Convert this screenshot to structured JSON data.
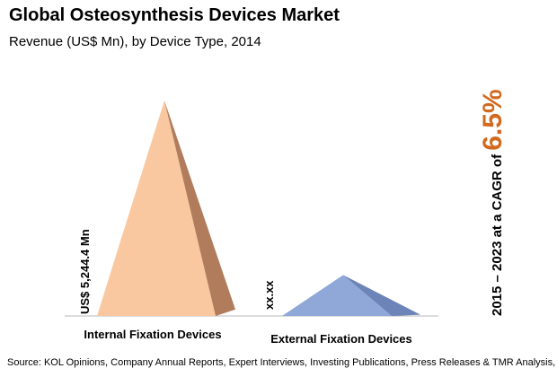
{
  "header": {
    "title": "Global Osteosynthesis Devices Market",
    "subtitle": "Revenue (US$ Mn), by Device Type, 2014"
  },
  "cagr": {
    "text": "2015 – 2023 at a CAGR of ",
    "value": "6.5%"
  },
  "source": "Source: KOL Opinions, Company Annual Reports, Expert Interviews, Investing Publications, Press Releases & TMR Analysis, 2016",
  "chart_data": {
    "type": "bar",
    "title": "Global Osteosynthesis Devices Market",
    "subtitle": "Revenue (US$ Mn), by Device Type, 2014",
    "categories": [
      "Internal Fixation Devices",
      "External Fixation Devices"
    ],
    "values": [
      5244.4,
      null
    ],
    "value_labels": [
      "US$ 5,244.4 Mn",
      "xx.xx"
    ],
    "relative_heights": [
      1.0,
      0.19
    ],
    "colors": {
      "internal_front": "#f9c8a0",
      "internal_side": "#b07c5c",
      "external_front": "#8fa8d8",
      "external_side": "#6c84b8",
      "cagr_accent": "#d2691e"
    },
    "grid": false,
    "legend": "none"
  }
}
